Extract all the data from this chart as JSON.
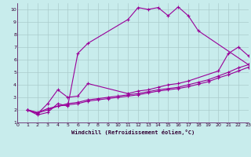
{
  "xlabel": "Windchill (Refroidissement éolien,°C)",
  "bg_color": "#c8ecec",
  "line_color": "#990099",
  "grid_color": "#aacccc",
  "xlim": [
    0,
    23
  ],
  "ylim": [
    1,
    10.5
  ],
  "xticks": [
    0,
    1,
    2,
    3,
    4,
    5,
    6,
    7,
    8,
    9,
    10,
    11,
    12,
    13,
    14,
    15,
    16,
    17,
    18,
    19,
    20,
    21,
    22,
    23
  ],
  "yticks": [
    1,
    2,
    3,
    4,
    5,
    6,
    7,
    8,
    9,
    10
  ],
  "line1_x": [
    1,
    2,
    3,
    4,
    5,
    6,
    7,
    11,
    12,
    13,
    14,
    15,
    16,
    17,
    18,
    23
  ],
  "line1_y": [
    2.0,
    1.6,
    1.8,
    2.5,
    2.3,
    6.5,
    7.3,
    9.2,
    10.15,
    10.0,
    10.15,
    9.5,
    10.2,
    9.5,
    8.3,
    5.6
  ],
  "line2_x": [
    1,
    2,
    3,
    4,
    5,
    6,
    7,
    8,
    9,
    10,
    11,
    12,
    13,
    14,
    15,
    16,
    17,
    18,
    19,
    20,
    21,
    22,
    23
  ],
  "line2_y": [
    2.0,
    1.8,
    2.1,
    2.3,
    2.5,
    2.6,
    2.8,
    2.9,
    3.0,
    3.1,
    3.2,
    3.3,
    3.45,
    3.6,
    3.7,
    3.8,
    4.0,
    4.2,
    4.4,
    4.7,
    5.0,
    5.35,
    5.6
  ],
  "line3_x": [
    1,
    2,
    3,
    4,
    5,
    6,
    7,
    8,
    9,
    10,
    11,
    12,
    13,
    14,
    15,
    16,
    17,
    18,
    19,
    20,
    21,
    22,
    23
  ],
  "line3_y": [
    2.0,
    1.75,
    2.0,
    2.3,
    2.4,
    2.5,
    2.7,
    2.8,
    2.9,
    3.0,
    3.1,
    3.2,
    3.35,
    3.5,
    3.6,
    3.7,
    3.85,
    4.05,
    4.25,
    4.55,
    4.8,
    5.1,
    5.4
  ],
  "line4_x": [
    1,
    2,
    3,
    4,
    5,
    6,
    7,
    11,
    12,
    13,
    14,
    15,
    16,
    17,
    20,
    21,
    22,
    23
  ],
  "line4_y": [
    2.0,
    1.7,
    2.5,
    3.6,
    3.0,
    3.1,
    4.1,
    3.3,
    3.5,
    3.6,
    3.8,
    4.0,
    4.1,
    4.3,
    5.1,
    6.5,
    7.0,
    6.3
  ]
}
